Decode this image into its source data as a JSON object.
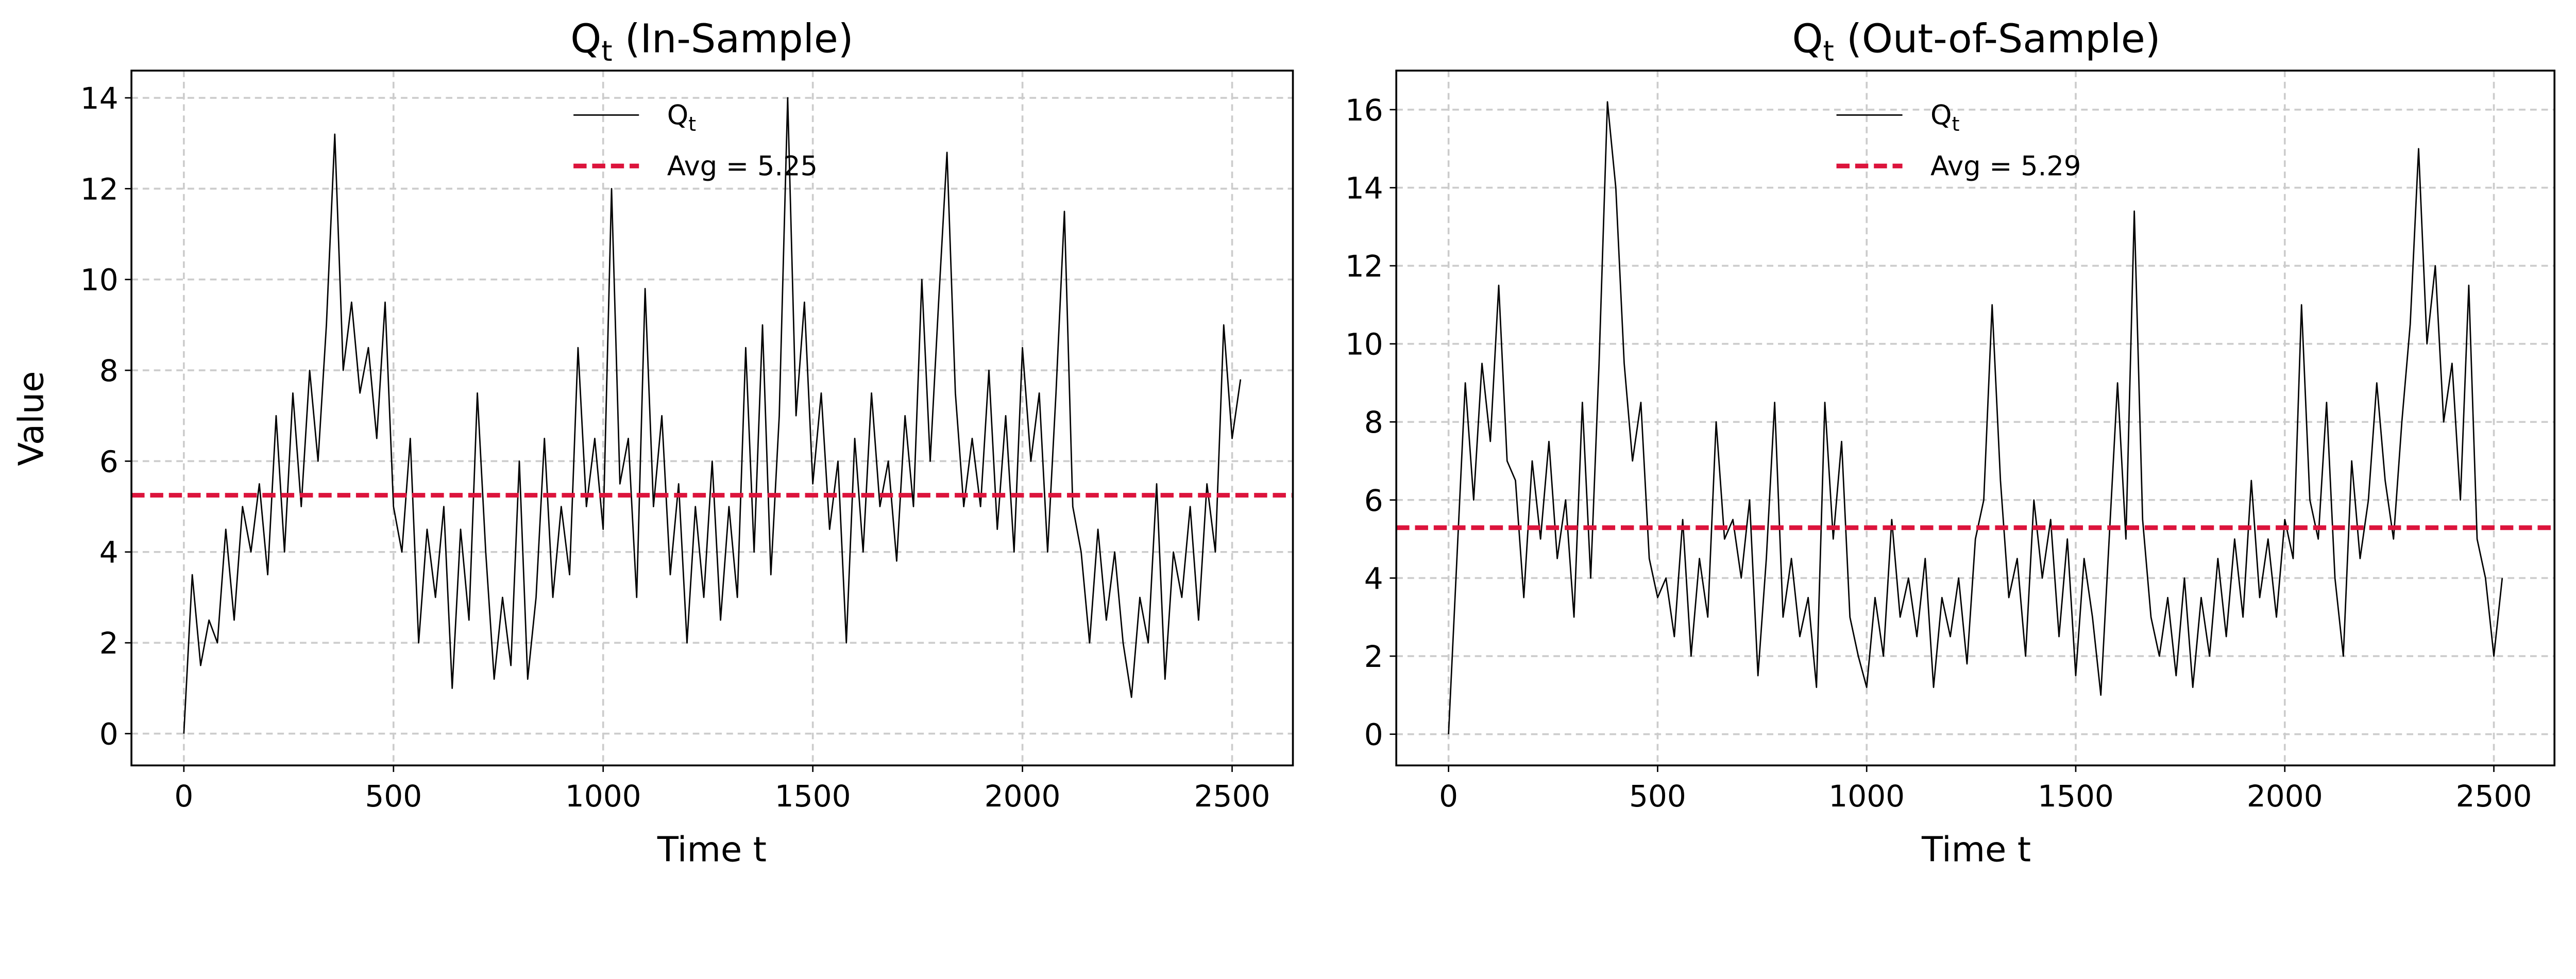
{
  "chart_data": [
    {
      "type": "line",
      "title_main": "Q",
      "title_sub": "t",
      "title_rest": " (In-Sample)",
      "xlabel": "Time t",
      "ylabel": "Value",
      "xlim": [
        -125,
        2645
      ],
      "ylim": [
        -0.7,
        14.6
      ],
      "xticks": [
        0,
        500,
        1000,
        1500,
        2000,
        2500
      ],
      "yticks": [
        0,
        2,
        4,
        6,
        8,
        10,
        12,
        14
      ],
      "grid": true,
      "legend_position": "upper-center",
      "legend": {
        "series_main": "Q",
        "series_sub": "t",
        "avg_label": "Avg = 5.25"
      },
      "avg": 5.25,
      "colors": {
        "series": "#000000",
        "avg": "#dc143c"
      },
      "x_start": 0,
      "x_step": 20,
      "values": [
        0,
        3.5,
        1.5,
        2.5,
        2,
        4.5,
        2.5,
        5,
        4,
        5.5,
        3.5,
        7,
        4,
        7.5,
        5,
        8,
        6,
        9,
        13.2,
        8,
        9.5,
        7.5,
        8.5,
        6.5,
        9.5,
        5,
        4,
        6.5,
        2,
        4.5,
        3,
        5,
        1,
        4.5,
        2.5,
        7.5,
        4,
        1.2,
        3,
        1.5,
        6,
        1.2,
        3,
        6.5,
        3,
        5,
        3.5,
        8.5,
        5,
        6.5,
        4.5,
        12,
        5.5,
        6.5,
        3,
        9.8,
        5,
        7,
        3.5,
        5.5,
        2,
        5,
        3,
        6,
        2.5,
        5,
        3,
        8.5,
        4,
        9,
        3.5,
        7,
        14,
        7,
        9.5,
        5.5,
        7.5,
        4.5,
        6,
        2,
        6.5,
        4,
        7.5,
        5,
        6,
        3.8,
        7,
        5,
        10,
        6,
        9.5,
        12.8,
        7.5,
        5,
        6.5,
        5,
        8,
        4.5,
        7,
        4,
        8.5,
        6,
        7.5,
        4,
        7.5,
        11.5,
        5,
        4,
        2,
        4.5,
        2.5,
        4,
        2,
        0.8,
        3,
        2,
        5.5,
        1.2,
        4,
        3,
        5,
        2.5,
        5.5,
        4,
        9,
        6.5,
        7.8
      ]
    },
    {
      "type": "line",
      "title_main": "Q",
      "title_sub": "t",
      "title_rest": " (Out-of-Sample)",
      "xlabel": "Time t",
      "ylabel": "",
      "xlim": [
        -125,
        2645
      ],
      "ylim": [
        -0.8,
        17.0
      ],
      "xticks": [
        0,
        500,
        1000,
        1500,
        2000,
        2500
      ],
      "yticks": [
        0,
        2,
        4,
        6,
        8,
        10,
        12,
        14,
        16
      ],
      "grid": true,
      "legend_position": "upper-center",
      "legend": {
        "series_main": "Q",
        "series_sub": "t",
        "avg_label": "Avg = 5.29"
      },
      "avg": 5.29,
      "colors": {
        "series": "#000000",
        "avg": "#dc143c"
      },
      "x_start": 0,
      "x_step": 20,
      "values": [
        0,
        4.5,
        9,
        6,
        9.5,
        7.5,
        11.5,
        7,
        6.5,
        3.5,
        7,
        5,
        7.5,
        4.5,
        6,
        3,
        8.5,
        4,
        9.5,
        16.2,
        14,
        9.5,
        7,
        8.5,
        4.5,
        3.5,
        4,
        2.5,
        5.5,
        2,
        4.5,
        3,
        8,
        5,
        5.5,
        4,
        6,
        1.5,
        4.5,
        8.5,
        3,
        4.5,
        2.5,
        3.5,
        1.2,
        8.5,
        5,
        7.5,
        3,
        2,
        1.2,
        3.5,
        2,
        5.5,
        3,
        4,
        2.5,
        4.5,
        1.2,
        3.5,
        2.5,
        4,
        1.8,
        5,
        6,
        11,
        6.5,
        3.5,
        4.5,
        2,
        6,
        4,
        5.5,
        2.5,
        5,
        1.5,
        4.5,
        3,
        1,
        5,
        9,
        5,
        13.4,
        5.5,
        3,
        2,
        3.5,
        1.5,
        4,
        1.2,
        3.5,
        2,
        4.5,
        2.5,
        5,
        3,
        6.5,
        3.5,
        5,
        3,
        5.5,
        4.5,
        11,
        6,
        5,
        8.5,
        4,
        2,
        7,
        4.5,
        6,
        9,
        6.5,
        5,
        8,
        10.5,
        15,
        10,
        12,
        8,
        9.5,
        6,
        11.5,
        5,
        4,
        2,
        4
      ]
    }
  ]
}
